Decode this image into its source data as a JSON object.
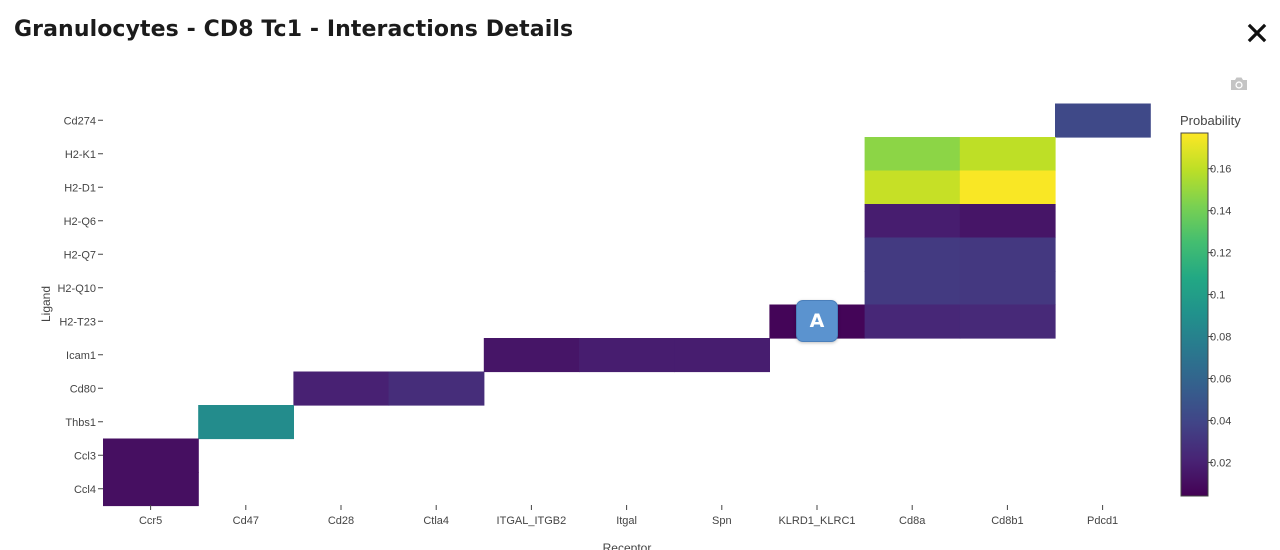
{
  "modal": {
    "title": "Granulocytes - CD8 Tc1 - Interactions Details"
  },
  "icons": {
    "close": "close-icon",
    "camera": "camera-icon"
  },
  "annotation": {
    "label": "A"
  },
  "chart_data": {
    "type": "heatmap",
    "xlabel": "Receptor",
    "ylabel": "Ligand",
    "x": [
      "Ccr5",
      "Cd47",
      "Cd28",
      "Ctla4",
      "ITGAL_ITGB2",
      "Itgal",
      "Spn",
      "KLRD1_KLRC1",
      "Cd8a",
      "Cd8b1",
      "Pdcd1"
    ],
    "y": [
      "Cd274",
      "H2-K1",
      "H2-D1",
      "H2-Q6",
      "H2-Q7",
      "H2-Q10",
      "H2-T23",
      "Icam1",
      "Cd80",
      "Thbs1",
      "Ccl3",
      "Ccl4"
    ],
    "cells": [
      {
        "x": "Pdcd1",
        "y": "Cd274",
        "value": 0.042
      },
      {
        "x": "Cd8a",
        "y": "H2-K1",
        "value": 0.147
      },
      {
        "x": "Cd8b1",
        "y": "H2-K1",
        "value": 0.16
      },
      {
        "x": "Cd8a",
        "y": "H2-D1",
        "value": 0.162
      },
      {
        "x": "Cd8b1",
        "y": "H2-D1",
        "value": 0.176
      },
      {
        "x": "Cd8a",
        "y": "H2-Q6",
        "value": 0.018
      },
      {
        "x": "Cd8b1",
        "y": "H2-Q6",
        "value": 0.014
      },
      {
        "x": "Cd8a",
        "y": "H2-Q7",
        "value": 0.033
      },
      {
        "x": "Cd8b1",
        "y": "H2-Q7",
        "value": 0.032
      },
      {
        "x": "Cd8a",
        "y": "H2-Q10",
        "value": 0.033
      },
      {
        "x": "Cd8b1",
        "y": "H2-Q10",
        "value": 0.032
      },
      {
        "x": "KLRD1_KLRC1",
        "y": "H2-T23",
        "value": 0.006
      },
      {
        "x": "Cd8a",
        "y": "H2-T23",
        "value": 0.023
      },
      {
        "x": "Cd8b1",
        "y": "H2-T23",
        "value": 0.024
      },
      {
        "x": "ITGAL_ITGB2",
        "y": "Icam1",
        "value": 0.014
      },
      {
        "x": "Itgal",
        "y": "Icam1",
        "value": 0.018
      },
      {
        "x": "Spn",
        "y": "Icam1",
        "value": 0.018
      },
      {
        "x": "Cd28",
        "y": "Cd80",
        "value": 0.02
      },
      {
        "x": "Ctla4",
        "y": "Cd80",
        "value": 0.026
      },
      {
        "x": "Cd47",
        "y": "Thbs1",
        "value": 0.087
      },
      {
        "x": "Ccr5",
        "y": "Ccl3",
        "value": 0.011
      },
      {
        "x": "Ccr5",
        "y": "Ccl4",
        "value": 0.011
      }
    ],
    "colorbar": {
      "title": "Probability",
      "tickvals": [
        0.02,
        0.04,
        0.06,
        0.08,
        0.1,
        0.12,
        0.14,
        0.16
      ],
      "ticktext": [
        "0.02",
        "0.04",
        "0.06",
        "0.08",
        "0.1",
        "0.12",
        "0.14",
        "0.16"
      ],
      "range": [
        0.004,
        0.177
      ],
      "colorscale": "viridis"
    }
  }
}
